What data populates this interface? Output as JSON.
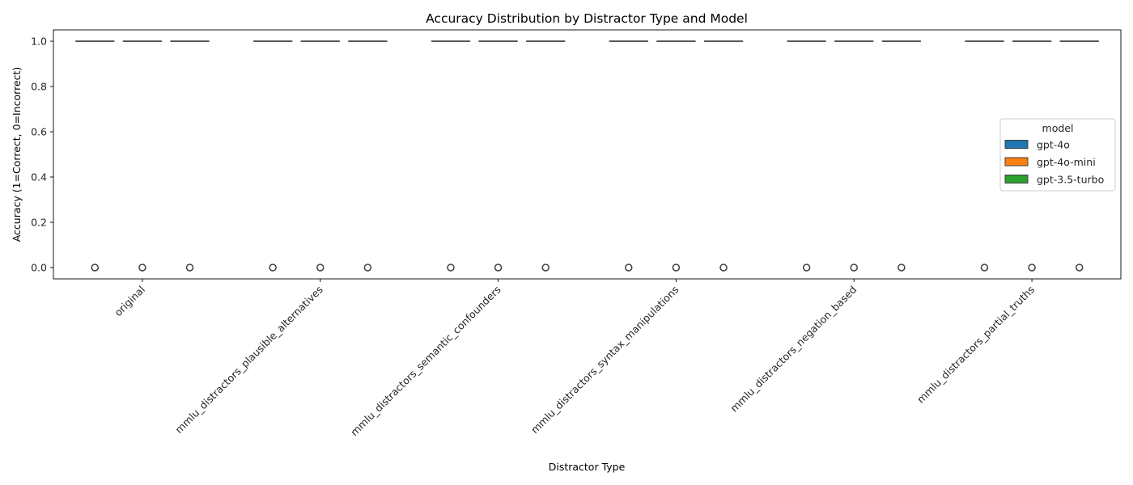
{
  "chart_data": {
    "type": "box",
    "title": "Accuracy Distribution by Distractor Type and Model",
    "xlabel": "Distractor Type",
    "ylabel": "Accuracy (1=Correct, 0=Incorrect)",
    "ylim": [
      -0.05,
      1.05
    ],
    "yticks": [
      0.0,
      0.2,
      0.4,
      0.6,
      0.8,
      1.0
    ],
    "ytick_labels": [
      "0.0",
      "0.2",
      "0.4",
      "0.6",
      "0.8",
      "1.0"
    ],
    "grid": false,
    "categories": [
      "original",
      "mmlu_distractors_plausible_alternatives",
      "mmlu_distractors_semantic_confounders",
      "mmlu_distractors_syntax_manipulations",
      "mmlu_distractors_negation_based",
      "mmlu_distractors_partial_truths"
    ],
    "legend": {
      "title": "model",
      "placement": "center-right"
    },
    "series": [
      {
        "name": "gpt-4o",
        "color": "#1f77b4",
        "boxes": [
          {
            "q1": 1,
            "median": 1,
            "q3": 1,
            "whisker_low": 1,
            "whisker_high": 1,
            "outliers": [
              0
            ]
          },
          {
            "q1": 1,
            "median": 1,
            "q3": 1,
            "whisker_low": 1,
            "whisker_high": 1,
            "outliers": [
              0
            ]
          },
          {
            "q1": 1,
            "median": 1,
            "q3": 1,
            "whisker_low": 1,
            "whisker_high": 1,
            "outliers": [
              0
            ]
          },
          {
            "q1": 1,
            "median": 1,
            "q3": 1,
            "whisker_low": 1,
            "whisker_high": 1,
            "outliers": [
              0
            ]
          },
          {
            "q1": 1,
            "median": 1,
            "q3": 1,
            "whisker_low": 1,
            "whisker_high": 1,
            "outliers": [
              0
            ]
          },
          {
            "q1": 1,
            "median": 1,
            "q3": 1,
            "whisker_low": 1,
            "whisker_high": 1,
            "outliers": [
              0
            ]
          }
        ]
      },
      {
        "name": "gpt-4o-mini",
        "color": "#ff7f0e",
        "boxes": [
          {
            "q1": 1,
            "median": 1,
            "q3": 1,
            "whisker_low": 1,
            "whisker_high": 1,
            "outliers": [
              0
            ]
          },
          {
            "q1": 1,
            "median": 1,
            "q3": 1,
            "whisker_low": 1,
            "whisker_high": 1,
            "outliers": [
              0
            ]
          },
          {
            "q1": 1,
            "median": 1,
            "q3": 1,
            "whisker_low": 1,
            "whisker_high": 1,
            "outliers": [
              0
            ]
          },
          {
            "q1": 1,
            "median": 1,
            "q3": 1,
            "whisker_low": 1,
            "whisker_high": 1,
            "outliers": [
              0
            ]
          },
          {
            "q1": 1,
            "median": 1,
            "q3": 1,
            "whisker_low": 1,
            "whisker_high": 1,
            "outliers": [
              0
            ]
          },
          {
            "q1": 1,
            "median": 1,
            "q3": 1,
            "whisker_low": 1,
            "whisker_high": 1,
            "outliers": [
              0
            ]
          }
        ]
      },
      {
        "name": "gpt-3.5-turbo",
        "color": "#2ca02c",
        "boxes": [
          {
            "q1": 1,
            "median": 1,
            "q3": 1,
            "whisker_low": 1,
            "whisker_high": 1,
            "outliers": [
              0
            ]
          },
          {
            "q1": 1,
            "median": 1,
            "q3": 1,
            "whisker_low": 1,
            "whisker_high": 1,
            "outliers": [
              0
            ]
          },
          {
            "q1": 1,
            "median": 1,
            "q3": 1,
            "whisker_low": 1,
            "whisker_high": 1,
            "outliers": [
              0
            ]
          },
          {
            "q1": 1,
            "median": 1,
            "q3": 1,
            "whisker_low": 1,
            "whisker_high": 1,
            "outliers": [
              0
            ]
          },
          {
            "q1": 1,
            "median": 1,
            "q3": 1,
            "whisker_low": 1,
            "whisker_high": 1,
            "outliers": [
              0
            ]
          },
          {
            "q1": 1,
            "median": 1,
            "q3": 1,
            "whisker_low": 1,
            "whisker_high": 1,
            "outliers": [
              0
            ]
          }
        ]
      }
    ]
  }
}
